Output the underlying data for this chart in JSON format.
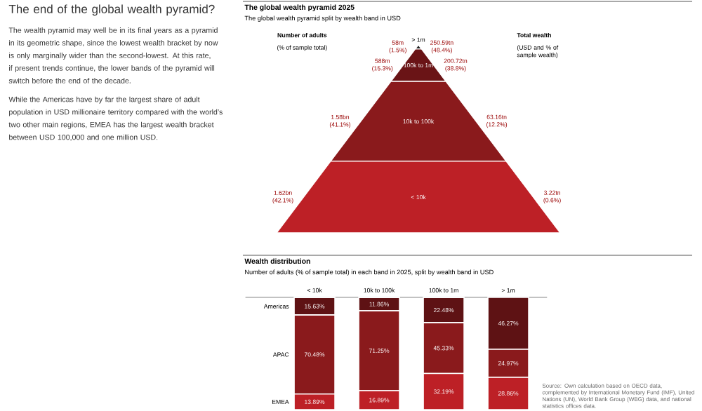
{
  "chart_data": [
    {
      "type": "other",
      "title": "The end of the global wealth pyramid?",
      "annotations": [
        "The wealth pyramid may well be in its final years as a pyramid in its geometric shape, since the lowest wealth bracket by now is only marginally wider than the second-lowest. At this rate, if present trends continue, the lower bands of the pyramid will switch before the end of the decade.",
        "While the Americas have by far the largest share of adult population in USD millionaire territory compared with the world’s two other main regions, EMEA has the largest wealth bracket between USD 100,000 and one million USD."
      ]
    },
    {
      "type": "other",
      "title": "The global wealth pyramid 2025",
      "subtitle": "The global wealth pyramid split by wealth band in USD",
      "categories": [
        "> 1m",
        "100k to 1m",
        "10k to 100k",
        "< 10k"
      ],
      "colors": [
        "#1c1c1c",
        "#6a1416",
        "#8a1a1c",
        "#bd2026"
      ],
      "series": [
        {
          "name": "Number of adults",
          "values": [
            58000000,
            588000000,
            1580000000,
            1620000000
          ],
          "value_labels": [
            "58m",
            "588m",
            "1.58bn",
            "1.62bn"
          ]
        },
        {
          "name": "(% of sample total)",
          "values": [
            1.5,
            15.3,
            41.1,
            42.1
          ],
          "value_labels": [
            "(1.5%)",
            "(15.3%)",
            "(41.1%)",
            "(42.1%)"
          ]
        },
        {
          "name": "Total wealth",
          "values": [
            250.59,
            200.72,
            63.16,
            3.22
          ],
          "value_labels": [
            "250.59tn",
            "200.72tn",
            "63.16tn",
            "3.22tn"
          ]
        },
        {
          "name": "(USD and % of sample wealth)",
          "values": [
            48.4,
            38.8,
            12.2,
            0.6
          ],
          "value_labels": [
            "(48.4%)",
            "(38.8%)",
            "(12.2%)",
            "(0.6%)"
          ]
        }
      ]
    },
    {
      "type": "bar",
      "stacked": true,
      "title": "Wealth distribution",
      "subtitle": "Number of adults (% of sample total) in each band in 2025, split by wealth band in USD",
      "categories": [
        "< 10k",
        "10k to 100k",
        "100k to 1m",
        "> 1m"
      ],
      "tick_labels": "x",
      "series": [
        {
          "name": "EMEA",
          "color": "#bd2026",
          "values": [
            13.89,
            16.89,
            32.19,
            28.86
          ],
          "value_labels": [
            "13.89%",
            "16.89%",
            "32.19%",
            "28.86%"
          ]
        },
        {
          "name": "APAC",
          "color": "#8a1a1c",
          "values": [
            70.48,
            71.25,
            45.33,
            24.97
          ],
          "value_labels": [
            "70.48%",
            "71.25%",
            "45.33%",
            "24.97%"
          ]
        },
        {
          "name": "Americas",
          "color": "#5e1214",
          "values": [
            15.63,
            11.86,
            22.48,
            46.27
          ],
          "value_labels": [
            "15.63%",
            "11.86%",
            "22.48%",
            "46.27%"
          ]
        }
      ],
      "annotations": [
        "Source: Own calculation based on OECD data, complemented by International Monetary Fund (IMF), United Nations (UN), World Bank Group (WBG) data, and national statistics offices data."
      ]
    }
  ]
}
